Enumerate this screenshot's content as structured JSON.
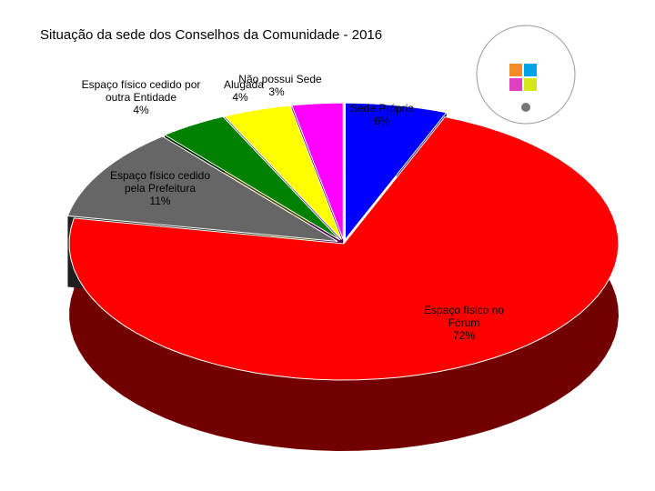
{
  "chart_data": {
    "type": "pie3d",
    "title": "Situação da sede dos Conselhos da Comunidade - 2016",
    "categories": [
      "Sede Própria",
      "Espaço físico no Fórum",
      "Espaço físico cedido pela Prefeitura",
      "Espaço físico cedido por outra Entidade",
      "Alugada",
      "Não possui Sede"
    ],
    "values": [
      6,
      72,
      11,
      4,
      4,
      3
    ],
    "value_labels": [
      "6%",
      "72%",
      "11%",
      "4%",
      "4%",
      "3%"
    ],
    "colors": [
      "#0000ff",
      "#ff0000",
      "#666666",
      "#008000",
      "#ffff00",
      "#ff00ff"
    ]
  }
}
